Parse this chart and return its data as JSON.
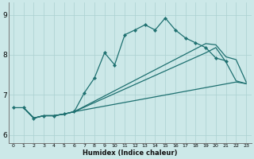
{
  "xlabel": "Humidex (Indice chaleur)",
  "bg_color": "#cce8e8",
  "line_color": "#1e7070",
  "xlim": [
    -0.5,
    23.5
  ],
  "ylim": [
    5.8,
    9.3
  ],
  "yticks": [
    6,
    7,
    8,
    9
  ],
  "xticks": [
    0,
    1,
    2,
    3,
    4,
    5,
    6,
    7,
    8,
    9,
    10,
    11,
    12,
    13,
    14,
    15,
    16,
    17,
    18,
    19,
    20,
    21,
    22,
    23
  ],
  "line_marker": {
    "x": [
      0,
      1,
      2,
      3,
      4,
      5,
      6,
      7,
      8,
      9,
      10,
      11,
      12,
      13,
      14,
      15,
      16,
      17,
      18,
      19,
      20,
      21
    ],
    "y": [
      6.68,
      6.68,
      6.42,
      6.48,
      6.48,
      6.52,
      6.58,
      7.05,
      7.42,
      8.05,
      7.75,
      8.5,
      8.62,
      8.75,
      8.62,
      8.92,
      8.62,
      8.42,
      8.3,
      8.18,
      7.92,
      7.85
    ]
  },
  "line_top": {
    "x": [
      1,
      2,
      3,
      4,
      5,
      6,
      19,
      20,
      21,
      22,
      23
    ],
    "y": [
      6.68,
      6.42,
      6.48,
      6.48,
      6.52,
      6.58,
      8.28,
      8.25,
      7.95,
      7.88,
      7.32
    ]
  },
  "line_mid": {
    "x": [
      1,
      2,
      3,
      4,
      5,
      6,
      19,
      20,
      21,
      22,
      23
    ],
    "y": [
      6.68,
      6.42,
      6.48,
      6.48,
      6.52,
      6.58,
      8.05,
      8.18,
      7.82,
      7.35,
      7.28
    ]
  },
  "line_bot": {
    "x": [
      1,
      2,
      3,
      4,
      5,
      6,
      22,
      23
    ],
    "y": [
      6.68,
      6.42,
      6.48,
      6.48,
      6.52,
      6.58,
      7.32,
      7.28
    ]
  }
}
